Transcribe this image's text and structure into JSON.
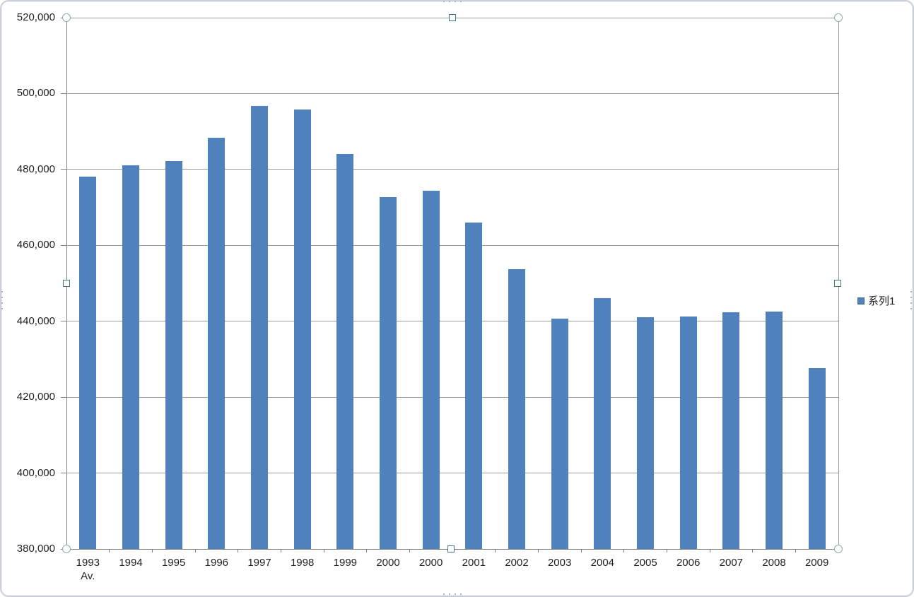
{
  "chart_data": {
    "type": "bar",
    "title": "",
    "xlabel": "",
    "ylabel": "",
    "categories": [
      "1993 Av.",
      "1994",
      "1995",
      "1996",
      "1997",
      "1998",
      "1999",
      "2000",
      "2000",
      "2001",
      "2002",
      "2003",
      "2004",
      "2005",
      "2006",
      "2007",
      "2008",
      "2009"
    ],
    "series": [
      {
        "name": "系列1",
        "values": [
          478100,
          481100,
          482200,
          488400,
          496800,
          495800,
          484000,
          472700,
          474300,
          466000,
          453700,
          440600,
          446100,
          441000,
          441300,
          442400,
          442600,
          427700
        ]
      }
    ],
    "ylim": [
      380000,
      520000
    ],
    "ytick_step": 20000,
    "ytick_labels": [
      "520,000",
      "500,000",
      "480,000",
      "460,000",
      "440,000",
      "420,000",
      "400,000",
      "380,000"
    ],
    "grid": true,
    "legend_position": "right"
  },
  "colors": {
    "bar": "#4f81bd",
    "gridline": "#9a9a9a",
    "axis": "#7f7f7f",
    "text": "#1f1f1f",
    "frame_border": "#ccd1d9",
    "handle_circle_border": "#8fa8b2",
    "handle_square_border": "#3f7787"
  }
}
